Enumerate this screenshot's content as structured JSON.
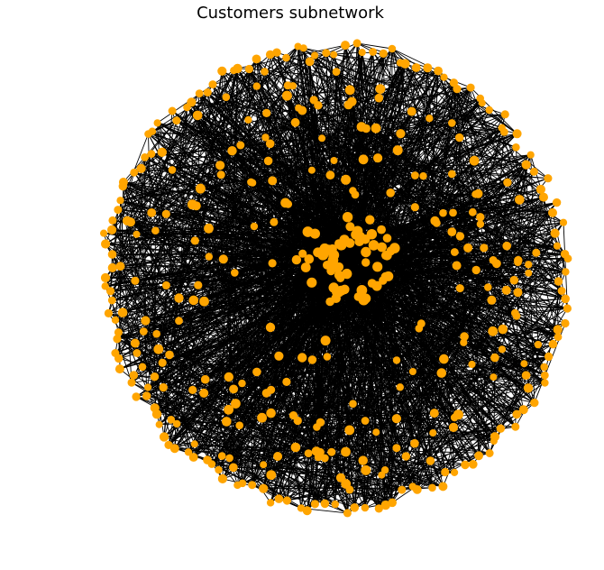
{
  "chart_data": {
    "type": "network",
    "title": "Customers subnetwork",
    "node_color": "#FFA500",
    "edge_color": "#000000",
    "background": "#FFFFFF",
    "axes_visible": false,
    "layout": "spring",
    "node_groups": {
      "outer_ring": 150,
      "middle_scatter": 215,
      "central_cluster": 65
    }
  }
}
